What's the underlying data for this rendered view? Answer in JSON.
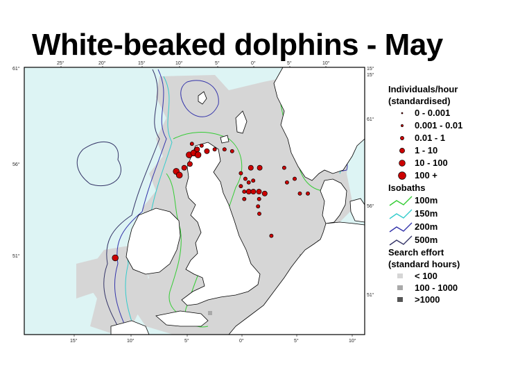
{
  "title": "White-beaked dolphins - May",
  "colors": {
    "sea": "#ddf4f4",
    "land": "#ffffff",
    "effort_low": "#d6d6d6",
    "effort_mid": "#a9a9a9",
    "effort_high": "#555555",
    "iso_100": "#33cc33",
    "iso_150": "#33cccc",
    "iso_200": "#3333aa",
    "iso_500": "#333366",
    "dot": "#cc0000"
  },
  "axes": {
    "top_labels": [
      "25°",
      "20°",
      "15°",
      "10°",
      "5°",
      "0°",
      "5°",
      "10°"
    ],
    "bottom_labels": [
      "15°",
      "10°",
      "5°",
      "0°",
      "5°",
      "10°"
    ],
    "left_labels": [
      "61°",
      "56°",
      "51°"
    ],
    "right_labels": [
      "15°",
      "61°",
      "56°",
      "51°"
    ],
    "right_top_label": "15°"
  },
  "legend": {
    "individuals_title": "Individuals/hour",
    "individuals_subtitle": "(standardised)",
    "individuals": [
      {
        "label": "0 - 0.001",
        "size": 1
      },
      {
        "label": "0.001 - 0.01",
        "size": 2
      },
      {
        "label": "0.01 - 1",
        "size": 3
      },
      {
        "label": "1 - 10",
        "size": 4
      },
      {
        "label": "10 - 100",
        "size": 5
      },
      {
        "label": "100 +",
        "size": 6
      }
    ],
    "isobaths_title": "Isobaths",
    "isobaths": [
      {
        "label": "100m",
        "color": "#33cc33"
      },
      {
        "label": "150m",
        "color": "#33cccc"
      },
      {
        "label": "200m",
        "color": "#3333aa"
      },
      {
        "label": "500m",
        "color": "#333366"
      }
    ],
    "effort_title": "Search effort",
    "effort_subtitle": "(standard hours)",
    "effort": [
      {
        "label": "< 100",
        "color": "#d6d6d6"
      },
      {
        "label": "100 - 1000",
        "color": "#a9a9a9"
      },
      {
        "label": ">1000",
        "color": "#555555"
      }
    ]
  },
  "sightings": [
    {
      "lon": -10.6,
      "lat": 51.0,
      "size": 5
    },
    {
      "lon": -5.9,
      "lat": 55.7,
      "size": 5
    },
    {
      "lon": -5.6,
      "lat": 55.5,
      "size": 5
    },
    {
      "lon": -5.2,
      "lat": 55.9,
      "size": 4
    },
    {
      "lon": -4.7,
      "lat": 56.1,
      "size": 4
    },
    {
      "lon": -4.8,
      "lat": 56.6,
      "size": 5
    },
    {
      "lon": -4.4,
      "lat": 56.7,
      "size": 5
    },
    {
      "lon": -4.0,
      "lat": 56.6,
      "size": 5
    },
    {
      "lon": -4.1,
      "lat": 56.9,
      "size": 4
    },
    {
      "lon": -3.7,
      "lat": 57.1,
      "size": 3
    },
    {
      "lon": -3.2,
      "lat": 56.8,
      "size": 4
    },
    {
      "lon": -2.5,
      "lat": 56.9,
      "size": 3
    },
    {
      "lon": -1.6,
      "lat": 56.9,
      "size": 3
    },
    {
      "lon": -0.9,
      "lat": 56.8,
      "size": 3
    },
    {
      "lon": -4.6,
      "lat": 57.2,
      "size": 3
    },
    {
      "lon": 0.8,
      "lat": 55.9,
      "size": 4
    },
    {
      "lon": 1.6,
      "lat": 55.9,
      "size": 4
    },
    {
      "lon": 3.8,
      "lat": 55.9,
      "size": 3
    },
    {
      "lon": -0.1,
      "lat": 55.6,
      "size": 3
    },
    {
      "lon": 0.3,
      "lat": 55.3,
      "size": 3
    },
    {
      "lon": 0.6,
      "lat": 55.1,
      "size": 3
    },
    {
      "lon": -0.1,
      "lat": 54.9,
      "size": 3
    },
    {
      "lon": 1.0,
      "lat": 55.2,
      "size": 3
    },
    {
      "lon": 4.0,
      "lat": 55.1,
      "size": 3
    },
    {
      "lon": 4.7,
      "lat": 55.3,
      "size": 3
    },
    {
      "lon": 5.1,
      "lat": 54.5,
      "size": 3
    },
    {
      "lon": 5.8,
      "lat": 54.5,
      "size": 3
    },
    {
      "lon": 0.2,
      "lat": 54.6,
      "size": 3
    },
    {
      "lon": 0.6,
      "lat": 54.6,
      "size": 4
    },
    {
      "lon": 1.0,
      "lat": 54.6,
      "size": 4
    },
    {
      "lon": 1.5,
      "lat": 54.6,
      "size": 4
    },
    {
      "lon": 2.0,
      "lat": 54.5,
      "size": 4
    },
    {
      "lon": 0.2,
      "lat": 54.2,
      "size": 3
    },
    {
      "lon": 1.5,
      "lat": 54.2,
      "size": 3
    },
    {
      "lon": 1.4,
      "lat": 53.8,
      "size": 3
    },
    {
      "lon": 1.5,
      "lat": 53.4,
      "size": 3
    },
    {
      "lon": 2.5,
      "lat": 52.2,
      "size": 3
    }
  ]
}
